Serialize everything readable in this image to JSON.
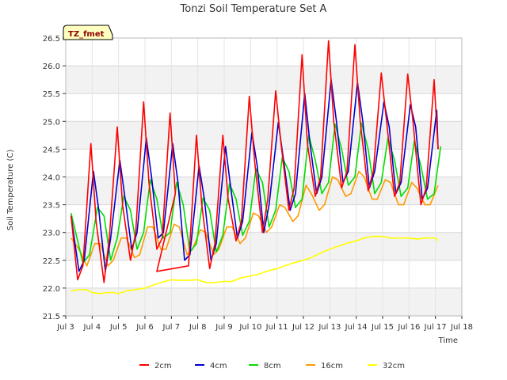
{
  "chart_data": {
    "type": "line",
    "title": "Tonzi Soil Temperature Set A",
    "xlabel": "Time",
    "ylabel": "Soil Temperature (C)",
    "badge": "TZ_fmet",
    "xlim": [
      3,
      18
    ],
    "ylim": [
      21.5,
      26.5
    ],
    "x_ticks": [
      3,
      4,
      5,
      6,
      7,
      8,
      9,
      10,
      11,
      12,
      13,
      14,
      15,
      16,
      17,
      18
    ],
    "x_tick_labels": [
      "Jul 3",
      "Jul 4",
      "Jul 5",
      "Jul 6",
      "Jul 7",
      "Jul 8",
      "Jul 9",
      "Jul 10",
      "Jul 11",
      "Jul 12",
      "Jul 13",
      "Jul 14",
      "Jul 15",
      "Jul 16",
      "Jul 17",
      "Jul 18"
    ],
    "y_ticks": [
      21.5,
      22.0,
      22.5,
      23.0,
      23.5,
      24.0,
      24.5,
      25.0,
      25.5,
      26.0,
      26.5
    ],
    "y_tick_labels": [
      "21.5",
      "22.0",
      "22.5",
      "23.0",
      "23.5",
      "24.0",
      "24.5",
      "25.0",
      "25.5",
      "26.0",
      "26.5"
    ],
    "grid": true,
    "legend_position": "bottom",
    "series": [
      {
        "name": "2cm",
        "color": "#ff0000",
        "x": [
          3.2,
          3.45,
          3.65,
          3.95,
          4.15,
          4.45,
          4.65,
          4.95,
          5.15,
          5.45,
          5.65,
          5.95,
          6.15,
          6.45,
          6.65,
          6.95,
          7.15,
          6.45,
          7.65,
          7.95,
          8.15,
          8.45,
          8.65,
          8.95,
          9.15,
          9.45,
          9.65,
          9.95,
          10.15,
          10.45,
          10.65,
          10.95,
          11.15,
          11.45,
          11.65,
          11.95,
          12.15,
          12.45,
          12.65,
          12.95,
          13.15,
          13.45,
          13.65,
          13.95,
          14.15,
          14.45,
          14.65,
          14.95,
          15.15,
          15.45,
          15.65,
          15.95,
          16.15,
          16.45,
          16.65,
          16.95,
          17.1
        ],
        "y": [
          23.3,
          22.15,
          22.4,
          24.6,
          23.2,
          22.1,
          22.9,
          24.9,
          23.5,
          22.5,
          23.0,
          25.35,
          23.9,
          22.7,
          22.9,
          25.15,
          23.7,
          22.3,
          22.4,
          24.75,
          23.5,
          22.35,
          22.8,
          24.75,
          23.6,
          22.85,
          23.2,
          25.45,
          24.3,
          23.0,
          23.6,
          25.55,
          24.6,
          23.4,
          23.8,
          26.2,
          24.6,
          23.65,
          24.0,
          26.45,
          25.0,
          23.8,
          24.1,
          26.38,
          25.0,
          23.75,
          24.1,
          25.87,
          25.0,
          23.65,
          23.9,
          25.85,
          25.0,
          23.5,
          23.8,
          25.75,
          24.5
        ]
      },
      {
        "name": "4cm",
        "color": "#0000cc",
        "x": [
          3.2,
          3.5,
          3.7,
          4.05,
          4.25,
          4.5,
          4.7,
          5.05,
          5.25,
          5.5,
          5.7,
          6.05,
          6.25,
          6.5,
          6.7,
          7.05,
          7.25,
          7.5,
          7.7,
          8.05,
          8.25,
          8.5,
          8.7,
          9.05,
          9.25,
          9.5,
          9.7,
          10.05,
          10.25,
          10.5,
          10.7,
          11.05,
          11.25,
          11.5,
          11.7,
          12.05,
          12.25,
          12.5,
          12.7,
          13.05,
          13.25,
          13.5,
          13.7,
          14.05,
          14.25,
          14.5,
          14.7,
          15.05,
          15.25,
          15.5,
          15.7,
          16.05,
          16.25,
          16.5,
          16.7,
          17.05,
          17.1
        ],
        "y": [
          23.3,
          22.3,
          22.5,
          24.1,
          23.4,
          22.3,
          22.9,
          24.3,
          23.6,
          22.7,
          23.0,
          24.7,
          24.0,
          22.9,
          23.0,
          24.6,
          23.9,
          22.5,
          22.6,
          24.2,
          23.6,
          22.5,
          22.8,
          24.55,
          23.8,
          22.9,
          23.2,
          24.8,
          24.2,
          23.0,
          23.5,
          24.98,
          24.3,
          23.4,
          23.7,
          25.5,
          24.6,
          23.7,
          24.0,
          25.75,
          25.0,
          23.9,
          24.1,
          25.7,
          25.0,
          23.8,
          24.1,
          25.35,
          24.9,
          23.7,
          23.9,
          25.3,
          24.9,
          23.6,
          23.8,
          25.2,
          24.5
        ]
      },
      {
        "name": "8cm",
        "color": "#00dd00",
        "x": [
          3.2,
          3.65,
          3.9,
          4.2,
          4.45,
          4.7,
          4.95,
          5.2,
          5.45,
          5.7,
          5.95,
          6.2,
          6.45,
          6.7,
          6.95,
          7.2,
          7.45,
          7.7,
          7.95,
          8.2,
          8.45,
          8.7,
          8.95,
          9.2,
          9.45,
          9.7,
          9.95,
          10.2,
          10.45,
          10.7,
          10.95,
          11.2,
          11.45,
          11.7,
          11.95,
          12.2,
          12.45,
          12.7,
          12.95,
          13.2,
          13.45,
          13.7,
          13.95,
          14.2,
          14.45,
          14.7,
          14.95,
          15.2,
          15.45,
          15.7,
          15.95,
          16.2,
          16.45,
          16.7,
          16.95,
          17.2
        ],
        "y": [
          23.35,
          22.45,
          22.6,
          23.45,
          23.3,
          22.5,
          22.9,
          23.65,
          23.4,
          22.7,
          23.0,
          23.95,
          23.6,
          22.9,
          23.0,
          23.9,
          23.5,
          22.65,
          22.8,
          23.62,
          23.4,
          22.65,
          22.95,
          23.88,
          23.6,
          22.95,
          23.2,
          24.15,
          23.9,
          23.1,
          23.4,
          24.35,
          24.1,
          23.45,
          23.6,
          24.75,
          24.3,
          23.7,
          23.9,
          24.95,
          24.5,
          23.85,
          24.0,
          24.97,
          24.5,
          23.7,
          23.9,
          24.7,
          24.3,
          23.65,
          23.8,
          24.65,
          24.2,
          23.6,
          23.7,
          24.55
        ]
      },
      {
        "name": "16cm",
        "color": "#ff9900",
        "x": [
          3.2,
          3.5,
          3.8,
          4.1,
          4.3,
          4.6,
          4.8,
          5.1,
          5.3,
          5.6,
          5.8,
          6.1,
          6.3,
          6.6,
          6.8,
          7.1,
          7.3,
          7.6,
          7.8,
          8.1,
          8.3,
          8.6,
          8.8,
          9.1,
          9.3,
          9.6,
          9.8,
          10.1,
          10.3,
          10.6,
          10.8,
          11.1,
          11.3,
          11.6,
          11.8,
          12.1,
          12.3,
          12.6,
          12.8,
          13.1,
          13.3,
          13.6,
          13.8,
          14.1,
          14.3,
          14.6,
          14.8,
          15.1,
          15.3,
          15.6,
          15.8,
          16.1,
          16.3,
          16.6,
          16.8,
          17.1
        ],
        "y": [
          22.9,
          22.7,
          22.4,
          22.8,
          22.8,
          22.4,
          22.5,
          22.9,
          22.9,
          22.55,
          22.6,
          23.1,
          23.1,
          22.7,
          22.7,
          23.15,
          23.1,
          22.6,
          22.7,
          23.05,
          23.0,
          22.6,
          22.7,
          23.1,
          23.1,
          22.8,
          22.9,
          23.35,
          23.3,
          23.0,
          23.1,
          23.5,
          23.45,
          23.2,
          23.3,
          23.85,
          23.7,
          23.4,
          23.5,
          24.0,
          23.95,
          23.65,
          23.7,
          24.1,
          24.0,
          23.6,
          23.6,
          23.95,
          23.9,
          23.5,
          23.5,
          23.9,
          23.8,
          23.5,
          23.5,
          23.85
        ]
      },
      {
        "name": "32cm",
        "color": "#ffff00",
        "x": [
          3.2,
          3.5,
          3.8,
          4.0,
          4.3,
          4.6,
          4.8,
          5.0,
          5.3,
          5.6,
          6.0,
          6.3,
          6.6,
          7.0,
          7.3,
          7.6,
          8.0,
          8.3,
          8.6,
          9.0,
          9.3,
          9.6,
          10.0,
          10.3,
          10.6,
          11.0,
          11.3,
          11.6,
          12.0,
          12.3,
          12.6,
          13.0,
          13.3,
          13.6,
          14.0,
          14.3,
          14.6,
          15.0,
          15.3,
          15.6,
          16.0,
          16.3,
          16.6,
          17.0,
          17.1
        ],
        "y": [
          21.95,
          21.97,
          21.97,
          21.92,
          21.9,
          21.92,
          21.92,
          21.9,
          21.95,
          21.97,
          22.0,
          22.05,
          22.1,
          22.15,
          22.14,
          22.14,
          22.15,
          22.1,
          22.1,
          22.12,
          22.12,
          22.18,
          22.22,
          22.25,
          22.3,
          22.35,
          22.4,
          22.45,
          22.5,
          22.55,
          22.62,
          22.7,
          22.75,
          22.8,
          22.85,
          22.9,
          22.93,
          22.93,
          22.9,
          22.9,
          22.9,
          22.88,
          22.9,
          22.9,
          22.85
        ]
      }
    ]
  }
}
